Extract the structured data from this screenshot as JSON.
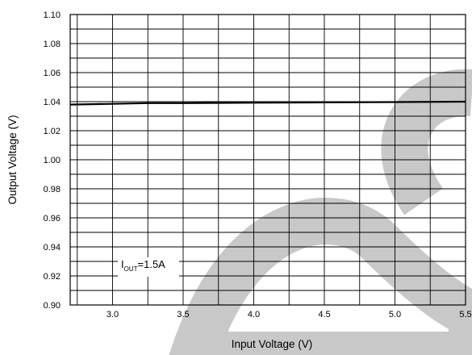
{
  "chart_data": {
    "type": "line",
    "xlabel": "Input Voltage (V)",
    "ylabel": "Output Voltage (V)",
    "xlim": [
      2.7,
      5.5
    ],
    "ylim": [
      0.9,
      1.1
    ],
    "x_ticks": [
      "3.0",
      "3.5",
      "4.0",
      "4.5",
      "5.0",
      "5.5"
    ],
    "y_ticks": [
      "0.90",
      "0.92",
      "0.94",
      "0.96",
      "0.98",
      "1.00",
      "1.02",
      "1.04",
      "1.06",
      "1.08",
      "1.10"
    ],
    "grid": true,
    "series": [
      {
        "x": [
          2.7,
          3.0,
          3.25,
          3.5,
          4.0,
          4.5,
          5.0,
          5.5
        ],
        "values": [
          1.038,
          1.0385,
          1.039,
          1.039,
          1.0393,
          1.0395,
          1.0397,
          1.04
        ]
      }
    ],
    "annotation": {
      "text_main": "I",
      "text_sub": "OUT",
      "text_rest": "=1.5A"
    },
    "colors": {
      "line": "#000000",
      "grid": "#000000",
      "watermark": "#c8c8c8"
    }
  }
}
